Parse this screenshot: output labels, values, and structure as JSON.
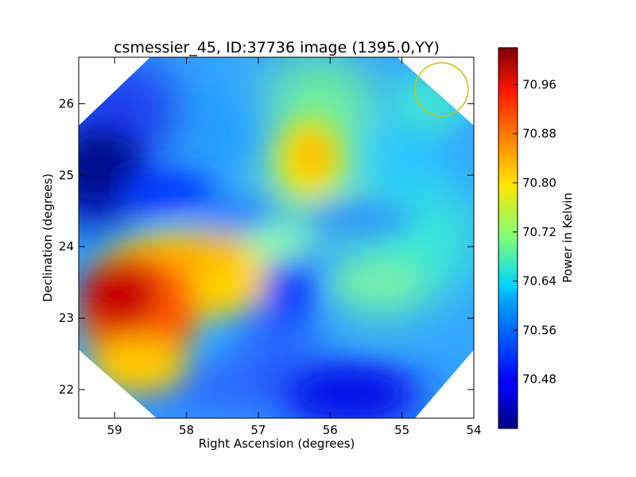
{
  "chart_data": {
    "type": "heatmap",
    "title": "csmessier_45, ID:37736 image (1395.0,YY)",
    "xlabel": "Right Ascension (degrees)",
    "ylabel": "Declination (degrees)",
    "xlim": [
      59.5,
      54.0
    ],
    "ylim": [
      21.6,
      26.65
    ],
    "x_ticks": [
      59,
      58,
      57,
      56,
      55,
      54
    ],
    "y_ticks": [
      22,
      23,
      24,
      25,
      26
    ],
    "colorbar": {
      "label": "Power in Kelvin",
      "colormap": "jet",
      "range": [
        70.4,
        71.02
      ],
      "ticks": [
        "70.48",
        "70.56",
        "70.64",
        "70.72",
        "70.80",
        "70.88",
        "70.96"
      ]
    },
    "beam_circle": {
      "ra": 54.45,
      "dec": 26.2,
      "radius_deg": 0.37,
      "color": "#c8c800"
    },
    "features": [
      {
        "ra": 59.0,
        "dec": 23.2,
        "value": 71.0,
        "note": "hot region"
      },
      {
        "ra": 56.2,
        "dec": 25.2,
        "value": 70.85,
        "note": "warm spot"
      },
      {
        "ra": 59.4,
        "dec": 25.0,
        "value": 70.43,
        "note": "cold region"
      },
      {
        "ra": 55.8,
        "dec": 21.9,
        "value": 70.47,
        "note": "cold region"
      }
    ]
  }
}
